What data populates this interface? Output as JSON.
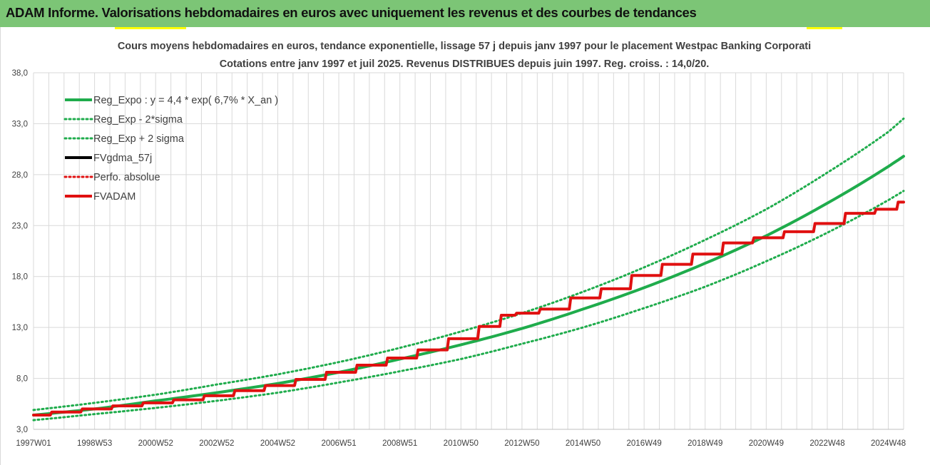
{
  "page": {
    "banner_title": "ADAM Informe. Valorisations hebdomadaires en euros avec uniquement les revenus et des courbes de tendances"
  },
  "colors": {
    "banner_bg": "#7cc576",
    "green": "#1fac4c",
    "red": "#e01010",
    "black": "#000000",
    "grid": "#d9d9d9",
    "yellow_accent": "#ffff00"
  },
  "chart_data": {
    "type": "line",
    "title": "Cours moyens hebdomadaires en euros, tendance exponentielle, lissage 57 j depuis janv 1997 pour le placement Westpac Banking Corporati",
    "subtitle": "Cotations entre janv 1997 et juil 2025. Revenus DISTRIBUES depuis juin 1997. Reg. croiss. : 14,0/20.",
    "x_tick_labels": [
      "1997W01",
      "1998W53",
      "2000W52",
      "2002W52",
      "2004W52",
      "2006W51",
      "2008W51",
      "2010W50",
      "2012W50",
      "2014W50",
      "2016W49",
      "2018W49",
      "2020W49",
      "2022W48",
      "2024W48"
    ],
    "x_tick_years": [
      1997.0,
      1999.0,
      2001.0,
      2003.0,
      2005.0,
      2007.0,
      2009.0,
      2011.0,
      2013.0,
      2015.0,
      2017.0,
      2019.0,
      2021.0,
      2023.0,
      2025.0
    ],
    "xlim": [
      1997.0,
      2025.5
    ],
    "ylim": [
      3.0,
      38.0
    ],
    "y_ticks": [
      "3,0",
      "8,0",
      "13,0",
      "18,0",
      "23,0",
      "28,0",
      "33,0",
      "38,0"
    ],
    "y_tick_values": [
      3,
      8,
      13,
      18,
      23,
      28,
      33,
      38
    ],
    "grid": true,
    "legend_position": "top-left",
    "legend": [
      {
        "label": "Reg_Expo : y = 4,4 * exp( 6,7% *  X_an )",
        "style": "solid",
        "color": "#1fac4c"
      },
      {
        "label": "Reg_Exp - 2*sigma",
        "style": "dotted",
        "color": "#1fac4c"
      },
      {
        "label": "Reg_Exp + 2 sigma",
        "style": "dotted",
        "color": "#1fac4c"
      },
      {
        "label": "FVgdma_57j",
        "style": "solid",
        "color": "#000000"
      },
      {
        "label": "Perfo. absolue",
        "style": "dotted",
        "color": "#e01010"
      },
      {
        "label": "FVADAM",
        "style": "solid",
        "color": "#e01010"
      }
    ],
    "series": [
      {
        "name": "Reg_Expo : y = 4,4 * exp( 6,7% *  X_an )",
        "style": "solid",
        "color": "#1fac4c",
        "x": [
          1997.0,
          1999.0,
          2001.0,
          2003.0,
          2005.0,
          2007.0,
          2009.0,
          2011.0,
          2013.0,
          2015.0,
          2017.0,
          2019.0,
          2021.0,
          2023.0,
          2025.0,
          2025.5
        ],
        "values": [
          4.4,
          5.0,
          5.8,
          6.6,
          7.5,
          8.6,
          9.9,
          11.3,
          12.9,
          14.8,
          16.9,
          19.3,
          22.0,
          25.2,
          28.8,
          29.8
        ]
      },
      {
        "name": "Reg_Exp - 2*sigma",
        "style": "dotted",
        "color": "#1fac4c",
        "x": [
          1997.0,
          1999.0,
          2001.0,
          2003.0,
          2005.0,
          2007.0,
          2009.0,
          2011.0,
          2013.0,
          2015.0,
          2017.0,
          2019.0,
          2021.0,
          2023.0,
          2025.0,
          2025.5
        ],
        "values": [
          3.9,
          4.5,
          5.1,
          5.8,
          6.6,
          7.6,
          8.7,
          9.9,
          11.4,
          13.0,
          14.9,
          17.0,
          19.5,
          22.3,
          25.5,
          26.4
        ]
      },
      {
        "name": "Reg_Exp + 2 sigma",
        "style": "dotted",
        "color": "#1fac4c",
        "x": [
          1997.0,
          1999.0,
          2001.0,
          2003.0,
          2005.0,
          2007.0,
          2009.0,
          2011.0,
          2013.0,
          2015.0,
          2017.0,
          2019.0,
          2021.0,
          2023.0,
          2025.0,
          2025.5
        ],
        "values": [
          4.9,
          5.6,
          6.4,
          7.4,
          8.4,
          9.6,
          11.0,
          12.6,
          14.4,
          16.5,
          18.9,
          21.6,
          24.6,
          28.2,
          32.2,
          33.5
        ]
      },
      {
        "name": "FVADAM",
        "style": "solid",
        "color": "#e01010",
        "x": [
          1997.0,
          1998.0,
          1999.0,
          2000.0,
          2001.0,
          2002.0,
          2003.0,
          2004.0,
          2005.0,
          2006.0,
          2007.0,
          2008.0,
          2009.0,
          2010.0,
          2011.0,
          2012.0,
          2012.5,
          2013.0,
          2014.0,
          2015.0,
          2016.0,
          2017.0,
          2018.0,
          2019.0,
          2020.0,
          2021.0,
          2022.0,
          2023.0,
          2024.0,
          2025.0,
          2025.5
        ],
        "values": [
          4.4,
          4.7,
          5.0,
          5.3,
          5.6,
          5.9,
          6.3,
          6.8,
          7.3,
          7.9,
          8.6,
          9.3,
          10.0,
          10.8,
          11.9,
          13.1,
          14.2,
          14.4,
          14.8,
          15.9,
          16.8,
          18.1,
          19.2,
          20.2,
          21.3,
          21.8,
          22.4,
          23.2,
          24.2,
          24.6,
          25.3
        ]
      },
      {
        "name": "FVgdma_57j",
        "style": "solid",
        "color": "#000000",
        "x": [
          1997.0,
          1998.0,
          1999.0,
          2000.0,
          2001.0,
          2002.0,
          2003.0,
          2004.0,
          2005.0,
          2006.0,
          2007.0,
          2008.0,
          2009.0,
          2010.0,
          2011.0,
          2012.0,
          2012.5,
          2013.0,
          2014.0,
          2015.0,
          2016.0,
          2017.0,
          2018.0,
          2019.0,
          2020.0,
          2021.0,
          2022.0,
          2023.0,
          2024.0,
          2025.0,
          2025.5
        ],
        "values": [
          4.4,
          4.7,
          5.0,
          5.3,
          5.6,
          5.9,
          6.3,
          6.8,
          7.3,
          7.9,
          8.6,
          9.3,
          10.0,
          10.8,
          11.9,
          13.1,
          14.2,
          14.4,
          14.8,
          15.9,
          16.8,
          18.1,
          19.2,
          20.2,
          21.3,
          21.8,
          22.4,
          23.2,
          24.2,
          24.6,
          25.3
        ]
      }
    ]
  }
}
